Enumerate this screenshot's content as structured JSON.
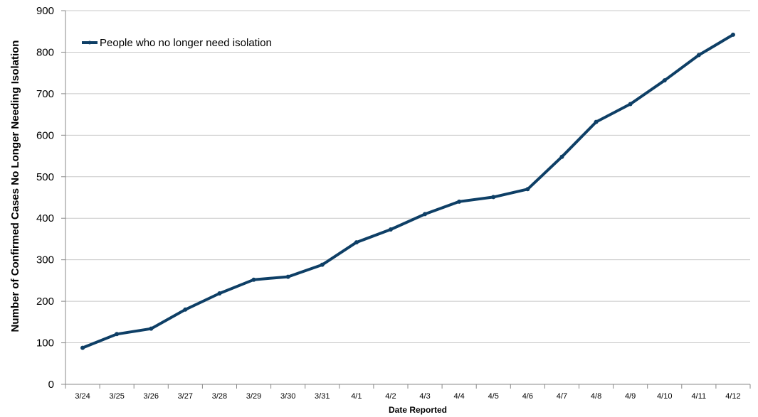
{
  "chart_data": {
    "type": "line",
    "title": "",
    "xlabel": "Date Reported",
    "ylabel": "Number of Confirmed Cases No Longer Needing Isolation",
    "categories": [
      "3/24",
      "3/25",
      "3/26",
      "3/27",
      "3/28",
      "3/29",
      "3/30",
      "3/31",
      "4/1",
      "4/2",
      "4/3",
      "4/4",
      "4/5",
      "4/6",
      "4/7",
      "4/8",
      "4/9",
      "4/10",
      "4/11",
      "4/12"
    ],
    "series": [
      {
        "name": "People who no longer need isolation",
        "color": "#0E3F66",
        "values": [
          88,
          121,
          134,
          180,
          219,
          252,
          259,
          288,
          342,
          373,
          410,
          440,
          451,
          470,
          548,
          632,
          675,
          732,
          793,
          842
        ]
      }
    ],
    "ylim": [
      0,
      900
    ],
    "yticks": [
      0,
      100,
      200,
      300,
      400,
      500,
      600,
      700,
      800,
      900
    ],
    "grid": true,
    "legend_position": "top-left"
  }
}
